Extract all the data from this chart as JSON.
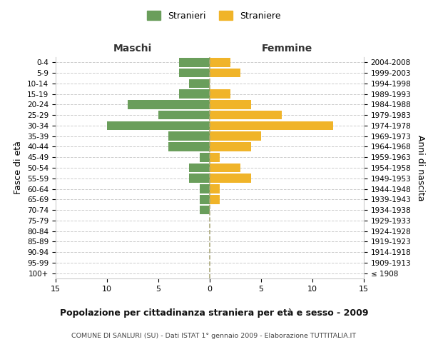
{
  "age_groups": [
    "100+",
    "95-99",
    "90-94",
    "85-89",
    "80-84",
    "75-79",
    "70-74",
    "65-69",
    "60-64",
    "55-59",
    "50-54",
    "45-49",
    "40-44",
    "35-39",
    "30-34",
    "25-29",
    "20-24",
    "15-19",
    "10-14",
    "5-9",
    "0-4"
  ],
  "birth_years": [
    "≤ 1908",
    "1909-1913",
    "1914-1918",
    "1919-1923",
    "1924-1928",
    "1929-1933",
    "1934-1938",
    "1939-1943",
    "1944-1948",
    "1949-1953",
    "1954-1958",
    "1959-1963",
    "1964-1968",
    "1969-1973",
    "1974-1978",
    "1979-1983",
    "1984-1988",
    "1989-1993",
    "1994-1998",
    "1999-2003",
    "2004-2008"
  ],
  "males": [
    0,
    0,
    0,
    0,
    0,
    0,
    1,
    1,
    1,
    2,
    2,
    1,
    4,
    4,
    10,
    5,
    8,
    3,
    2,
    3,
    3
  ],
  "females": [
    0,
    0,
    0,
    0,
    0,
    0,
    0,
    1,
    1,
    4,
    3,
    1,
    4,
    5,
    12,
    7,
    4,
    2,
    0,
    3,
    2
  ],
  "color_male": "#6a9e5b",
  "color_female": "#f0b429",
  "title": "Popolazione per cittadinanza straniera per età e sesso - 2009",
  "subtitle": "COMUNE DI SANLURI (SU) - Dati ISTAT 1° gennaio 2009 - Elaborazione TUTTITALIA.IT",
  "xlabel_left": "Maschi",
  "xlabel_right": "Femmine",
  "ylabel_left": "Fasce di età",
  "ylabel_right": "Anni di nascita",
  "legend_male": "Stranieri",
  "legend_female": "Straniere",
  "xlim": 15,
  "background_color": "#ffffff",
  "grid_color": "#cccccc",
  "bar_height": 0.85
}
